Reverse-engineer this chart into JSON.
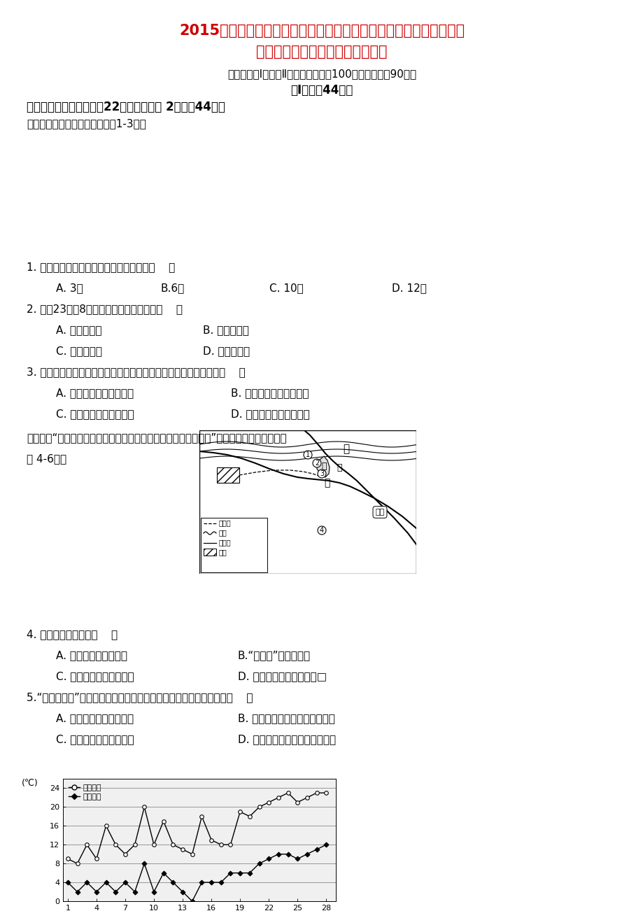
{
  "title_line1": "2015年秋季南乔中学、荷山中学、南安三中、永春三中、永春乔中高",
  "title_line2": "中毕业班第一次联合考试地理试题",
  "subtitle": "本试题分第Ⅰ卷和第Ⅱ卷两部分，满分100分，考试时间90分钟",
  "section_title": "第Ⅰ卷（共44分）",
  "section_header": "一、选择题（本大题包括22小题，每小题 2分，共44分）",
  "graph_intro": "读南昌市某月气温曲线图，回筍1-3题。",
  "legend_max": "最高气温",
  "legend_min": "最低气温",
  "yticks": [
    0,
    4,
    8,
    12,
    16,
    20,
    24
  ],
  "xticks": [
    1,
    4,
    7,
    10,
    13,
    16,
    19,
    22,
    25,
    28
  ],
  "max_temp": [
    9,
    8,
    12,
    9,
    16,
    12,
    10,
    12,
    20,
    12,
    17,
    12,
    11,
    10,
    18,
    13,
    12,
    12,
    19,
    18,
    20,
    21,
    22,
    23,
    21,
    22,
    23,
    23
  ],
  "min_temp": [
    4,
    2,
    4,
    2,
    4,
    2,
    4,
    2,
    8,
    2,
    6,
    4,
    2,
    0,
    4,
    4,
    4,
    6,
    6,
    6,
    8,
    9,
    10,
    10,
    9,
    10,
    11,
    12
  ],
  "q1": "1. 正常年份，该气温出现的月份最可能是（    ）",
  "q1a": "A. 3月",
  "q1b": "B.6月",
  "q1c": "C. 10月",
  "q1d": "D. 12月",
  "q2": "2. 该月23日丸8日的天气状况分别可能是（    ）",
  "q2a": "A. 多云、阴雨",
  "q2b": "B. 晴朗、多云",
  "q2c": "C. 阴雨、晴朗",
  "q2d": "D. 晴朗、阴雨",
  "q3": "3. 该月南昌市出现若干次降水，其降水的成因及主要类型最可能是（    ）",
  "q3a": "A. 热力作用形成的对流雨",
  "q3b": "B. 冷锋活动形成的锋面雨",
  "q3c": "C. 地形抬升形成的地形雨",
  "q3d": "D. 热带气旋形成的台风雨",
  "poem_intro": "古诗曰：“莫问桑田事，但看桑落洲。数家新住处，昔日大江流。”结合下图和所学知识，完成 4-6题。",
  "q4": "4. 下列叙述正确的是（    ）",
  "q4a": "A. 河流的东岸是侵蚀岂",
  "q4b": "B.“新住处”多位于乙地",
  "q4c": "C. 乙岸河床较陶宜建河港",
  "q4d": "D. 河流流向为自南向北流□",
  "q5": "5.“莫问桑田事”中桑落洲即指江心洲，多位于河流下游，一般是由于（    ）",
  "q5a": "A. 河道凹岸流水侵蚀而成",
  "q5b": "B. 河流水位下降，河床露出而成",
  "q5c": "C. 河流涨水淹没沙洲而成",
  "q5d": "D. 河道变宽之处，泥沙淤积而成",
  "background_color": "#ffffff",
  "title_color": "#cc0000",
  "text_color": "#000000"
}
